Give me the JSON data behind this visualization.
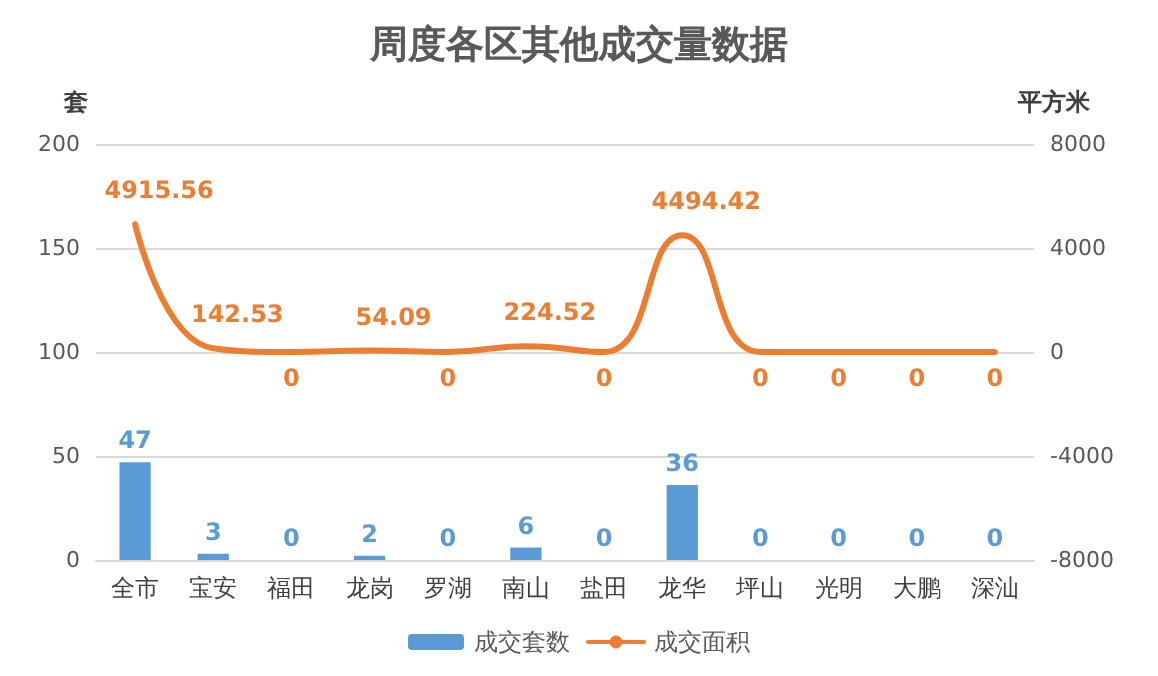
{
  "chart_data": {
    "type": "bar",
    "title": "周度各区其他成交量数据",
    "ylabel": "套",
    "y2label": "平方米",
    "categories": [
      "全市",
      "宝安",
      "福田",
      "龙岗",
      "罗湖",
      "南山",
      "盐田",
      "龙华",
      "坪山",
      "光明",
      "大鹏",
      "深汕"
    ],
    "series": [
      {
        "name": "成交套数",
        "color": "#5b9bd5",
        "values": [
          47,
          3,
          0,
          2,
          0,
          6,
          0,
          36,
          0,
          0,
          0,
          0
        ]
      },
      {
        "name": "成交面积",
        "type": "line",
        "axis": "y2",
        "color": "#ed7d31",
        "values": [
          4915.56,
          142.53,
          0,
          54.09,
          0,
          224.52,
          0,
          4494.42,
          0,
          0,
          0,
          0
        ]
      }
    ],
    "ylim": [
      0,
      200
    ],
    "yticks": [
      0,
      50,
      100,
      150,
      200
    ],
    "y2lim": [
      -8000,
      8000
    ],
    "y2ticks": [
      -8000,
      -4000,
      0,
      4000,
      8000
    ],
    "grid": "y",
    "legend": "bottom",
    "data_labels": true,
    "marker": "none",
    "line_style": "solid"
  }
}
